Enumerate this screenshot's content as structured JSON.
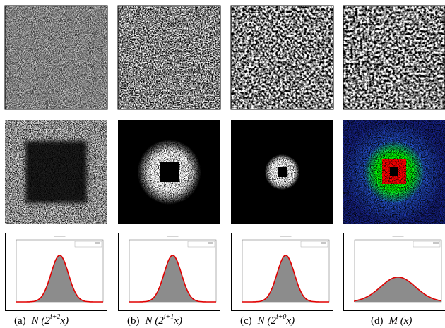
{
  "panels": [
    {
      "label": "(a)",
      "before": "N (2",
      "exponent": "i+2",
      "after": "x)"
    },
    {
      "label": "(b)",
      "before": "N (2",
      "exponent": "i+1",
      "after": "x)"
    },
    {
      "label": "(c)",
      "before": "N (2",
      "exponent": "i+0",
      "after": "x)"
    },
    {
      "label": "(d)",
      "before": "M (x)"
    }
  ]
}
